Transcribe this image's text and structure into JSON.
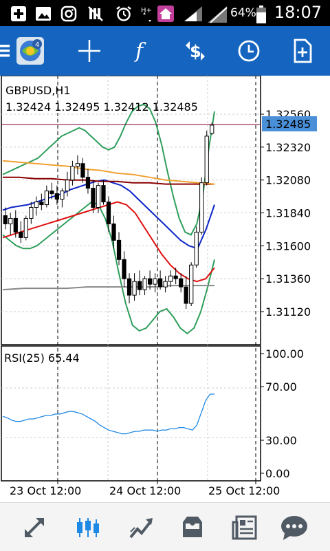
{
  "status_bar": {
    "battery_percent": "64%",
    "time": "18:07",
    "icons": [
      "add-box-icon",
      "image-icon",
      "instagram-icon",
      "mute-icon",
      "alarm-icon",
      "data-arrows-icon",
      "home-icon",
      "signal-icon",
      "battery-icon"
    ]
  },
  "toolbar": {
    "icons": [
      "menu-icon",
      "metatrader-logo-icon",
      "crosshair-icon",
      "indicators-icon",
      "symbol-change-icon",
      "timeframe-icon",
      "new-order-icon"
    ],
    "accent": "#1565c0"
  },
  "chart": {
    "symbol_label": "GBPUSD,H1",
    "ohlc_label": "1.32424 1.32495 1.32412 1.32485",
    "current_price": "1.32485",
    "current_price_color": "#4a90d9",
    "price_ticks": [
      "1.32560",
      "1.32320",
      "1.32080",
      "1.31840",
      "1.31600",
      "1.31360",
      "1.31120"
    ],
    "time_ticks": [
      "23 Oct 12:00",
      "24 Oct 12:00",
      "25 Oct 12:00"
    ],
    "rsi_label": "RSI(25) 65.44",
    "rsi_ticks": [
      "100.00",
      "70.00",
      "30.00",
      "0.00"
    ]
  },
  "chart_data": {
    "type": "line",
    "title": "GBPUSD,H1",
    "price_ylim": [
      1.309,
      1.3268
    ],
    "candles": [
      [
        1.3182,
        1.3188,
        1.3172,
        1.3176
      ],
      [
        1.3176,
        1.3184,
        1.3168,
        1.318
      ],
      [
        1.318,
        1.3186,
        1.3166,
        1.317
      ],
      [
        1.317,
        1.3178,
        1.3162,
        1.3166
      ],
      [
        1.3166,
        1.3182,
        1.3164,
        1.318
      ],
      [
        1.318,
        1.3192,
        1.3176,
        1.3188
      ],
      [
        1.3188,
        1.3196,
        1.3182,
        1.3192
      ],
      [
        1.3192,
        1.3198,
        1.3186,
        1.319
      ],
      [
        1.319,
        1.3204,
        1.3188,
        1.32
      ],
      [
        1.32,
        1.3206,
        1.3194,
        1.3198
      ],
      [
        1.3198,
        1.3204,
        1.319,
        1.3194
      ],
      [
        1.3194,
        1.3202,
        1.3188,
        1.32
      ],
      [
        1.32,
        1.3214,
        1.3196,
        1.3208
      ],
      [
        1.3208,
        1.3222,
        1.3204,
        1.3218
      ],
      [
        1.3218,
        1.3226,
        1.3212,
        1.322
      ],
      [
        1.322,
        1.3224,
        1.3206,
        1.321
      ],
      [
        1.321,
        1.3216,
        1.3198,
        1.3202
      ],
      [
        1.3202,
        1.3208,
        1.3184,
        1.3188
      ],
      [
        1.3188,
        1.3206,
        1.3184,
        1.3204
      ],
      [
        1.3204,
        1.3208,
        1.319,
        1.3192
      ],
      [
        1.3192,
        1.3196,
        1.317,
        1.3176
      ],
      [
        1.3176,
        1.3182,
        1.3158,
        1.3164
      ],
      [
        1.3164,
        1.317,
        1.3146,
        1.315
      ],
      [
        1.315,
        1.3156,
        1.313,
        1.3136
      ],
      [
        1.3136,
        1.314,
        1.3118,
        1.3124
      ],
      [
        1.3124,
        1.314,
        1.312,
        1.3134
      ],
      [
        1.3134,
        1.3142,
        1.3124,
        1.3128
      ],
      [
        1.3128,
        1.3138,
        1.3124,
        1.3136
      ],
      [
        1.3136,
        1.3142,
        1.3128,
        1.3132
      ],
      [
        1.3132,
        1.314,
        1.3126,
        1.3136
      ],
      [
        1.3136,
        1.3142,
        1.3128,
        1.313
      ],
      [
        1.313,
        1.3138,
        1.3126,
        1.3134
      ],
      [
        1.3134,
        1.3142,
        1.313,
        1.3138
      ],
      [
        1.3138,
        1.3144,
        1.3132,
        1.3136
      ],
      [
        1.3136,
        1.314,
        1.3126,
        1.313
      ],
      [
        1.313,
        1.3138,
        1.3114,
        1.3118
      ],
      [
        1.3118,
        1.3148,
        1.3116,
        1.3146
      ],
      [
        1.3146,
        1.3174,
        1.3144,
        1.317
      ],
      [
        1.317,
        1.321,
        1.3168,
        1.3206
      ],
      [
        1.3206,
        1.3244,
        1.3204,
        1.324
      ],
      [
        1.3242,
        1.325,
        1.3241,
        1.3248
      ]
    ],
    "series": [
      {
        "color": "#2e9e5b",
        "values": [
          1.3212,
          1.3214,
          1.3216,
          1.3218,
          1.322,
          1.3222,
          1.3224,
          1.3228,
          1.3232,
          1.3236,
          1.324,
          1.3242,
          1.3244,
          1.3246,
          1.3244,
          1.324,
          1.3236,
          1.3232,
          1.323,
          1.3232,
          1.324,
          1.325,
          1.3258,
          1.3262,
          1.3263,
          1.326,
          1.325,
          1.3234,
          1.3214,
          1.3196,
          1.318,
          1.317,
          1.3168,
          1.3176,
          1.3196,
          1.323,
          1.3258
        ]
      },
      {
        "color": "#2e9e5b",
        "values": [
          1.3168,
          1.3164,
          1.316,
          1.3158,
          1.3158,
          1.316,
          1.3164,
          1.3168,
          1.3172,
          1.3176,
          1.318,
          1.3184,
          1.3188,
          1.3192,
          1.319,
          1.318,
          1.3164,
          1.314,
          1.3118,
          1.3102,
          1.3098,
          1.31,
          1.3106,
          1.3112,
          1.3114,
          1.3108,
          1.31,
          1.3096,
          1.31,
          1.3112,
          1.313,
          1.315
        ]
      },
      {
        "color": "#0b24c9",
        "values": [
          1.3186,
          1.3188,
          1.3189,
          1.319,
          1.3192,
          1.3194,
          1.3196,
          1.3198,
          1.3201,
          1.3203,
          1.3205,
          1.3207,
          1.3208,
          1.3206,
          1.3204,
          1.32,
          1.3194,
          1.3188,
          1.3182,
          1.3176,
          1.317,
          1.3164,
          1.316,
          1.3158,
          1.3172,
          1.319
        ]
      },
      {
        "color": "#e01010",
        "values": [
          1.3166,
          1.3168,
          1.317,
          1.3172,
          1.3174,
          1.3176,
          1.3178,
          1.318,
          1.3182,
          1.3184,
          1.3186,
          1.3188,
          1.319,
          1.3192,
          1.319,
          1.3184,
          1.3174,
          1.3164,
          1.3154,
          1.3146,
          1.314,
          1.3136,
          1.3134,
          1.3136,
          1.3144
        ]
      },
      {
        "color": "#8b0000",
        "values": [
          1.321,
          1.321,
          1.3209,
          1.3209,
          1.3208,
          1.3208,
          1.3207,
          1.3207,
          1.3206,
          1.3206,
          1.3205,
          1.3205,
          1.3205,
          1.3205
        ]
      },
      {
        "color": "#f0a030",
        "values": [
          1.3222,
          1.3221,
          1.322,
          1.3219,
          1.3218,
          1.3216,
          1.3215,
          1.3213,
          1.3212,
          1.321,
          1.3208,
          1.3207,
          1.3206,
          1.3205
        ]
      },
      {
        "color": "#888888",
        "values": [
          1.3128,
          1.3129,
          1.3129,
          1.3129,
          1.313,
          1.313,
          1.313,
          1.313,
          1.3131,
          1.3131,
          1.3131
        ]
      }
    ],
    "rsi": {
      "ylim": [
        0,
        100
      ],
      "values": [
        47,
        46,
        44,
        43,
        43,
        44,
        45,
        45,
        46,
        47,
        48,
        48,
        49,
        49,
        50,
        51,
        51,
        50,
        49,
        47,
        45,
        43,
        40,
        38,
        36,
        35,
        34,
        33,
        33,
        34,
        35,
        35,
        36,
        36,
        36,
        35,
        36,
        36,
        37,
        37,
        38,
        38,
        37,
        36,
        40,
        50,
        60,
        65,
        65
      ]
    },
    "xlabel": "",
    "ylabel": ""
  },
  "bottom_nav": {
    "icons": [
      "quotes-icon",
      "chart-icon",
      "trade-icon",
      "history-icon",
      "news-icon",
      "chat-icon"
    ],
    "active": "chart-icon"
  }
}
